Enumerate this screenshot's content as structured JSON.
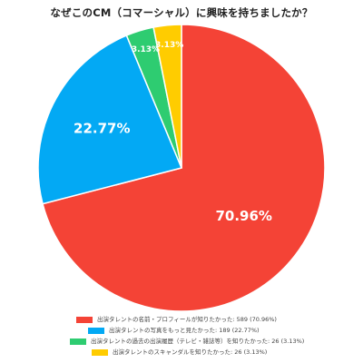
{
  "chart_data": {
    "type": "pie",
    "title": "なぜこのCM（コマーシャル）に興味を持ちましたか？",
    "slices": [
      {
        "label": "出演タレントの名前・プロフィールが知りたかった",
        "value": 589,
        "percent": 70.96,
        "percent_label": "70.96%",
        "legend_text": "出演タレントの名前・プロフィールが知りたかった: 589 (70.96%)",
        "color": "#f44336"
      },
      {
        "label": "出演タレントの写真をもっと見たかった",
        "value": 189,
        "percent": 22.77,
        "percent_label": "22.77%",
        "legend_text": "出演タレントの写真をもっと見たかった: 189 (22.77%)",
        "color": "#03a9f4"
      },
      {
        "label": "出演タレントの過去の出演履歴（テレビ・雑誌等）を知りたかった",
        "value": 26,
        "percent": 3.13,
        "percent_label": "3.13%",
        "legend_text": "出演タレントの過去の出演履歴（テレビ・雑誌等）を知りたかった: 26 (3.13%)",
        "color": "#2ecc71"
      },
      {
        "label": "出演タレントのスキャンダルを知りたかった",
        "value": 26,
        "percent": 3.13,
        "percent_label": "3.13%",
        "legend_text": "出演タレントのスキャンダルを知りたかった: 26 (3.13%)",
        "color": "#ffcc00"
      }
    ],
    "start_angle_deg": 0,
    "direction": "clockwise",
    "legend_position": "bottom"
  }
}
